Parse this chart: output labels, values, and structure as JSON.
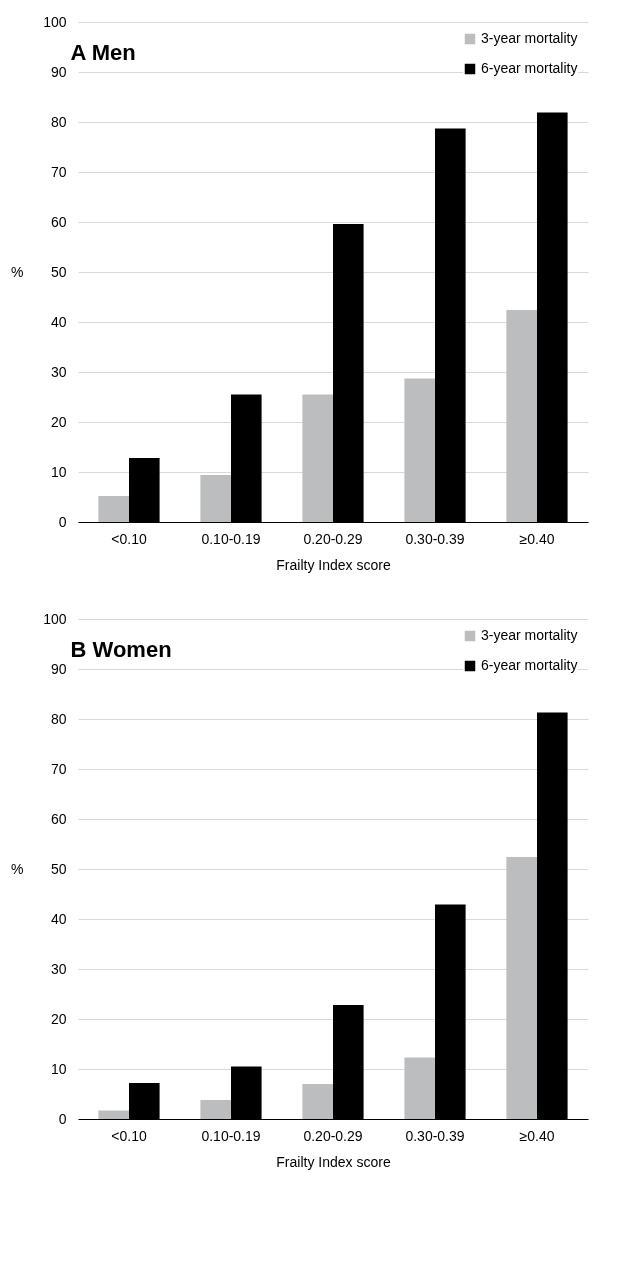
{
  "chart_data": [
    {
      "type": "bar",
      "title": "A Men",
      "xlabel": "Frailty Index score",
      "ylabel": "%",
      "categories": [
        "<0.10",
        "0.10-0.19",
        "0.20-0.29",
        "0.30-0.39",
        "≥0.40"
      ],
      "series": [
        {
          "name": "3-year mortality",
          "color": "#bcbdbf",
          "values": [
            5.2,
            9.4,
            25.5,
            28.7,
            42.4
          ]
        },
        {
          "name": "6-year mortality",
          "color": "#000000",
          "values": [
            12.8,
            25.5,
            59.6,
            78.7,
            81.9
          ]
        }
      ],
      "ylim": [
        0,
        100
      ],
      "yticks": [
        0,
        10,
        20,
        30,
        40,
        50,
        60,
        70,
        80,
        90,
        100
      ],
      "grid": "y",
      "legend": "top right"
    },
    {
      "type": "bar",
      "title": "B Women",
      "xlabel": "Frailty Index score",
      "ylabel": "%",
      "categories": [
        "<0.10",
        "0.10-0.19",
        "0.20-0.29",
        "0.30-0.39",
        "≥0.40"
      ],
      "series": [
        {
          "name": "3-year mortality",
          "color": "#bcbdbf",
          "values": [
            1.7,
            3.8,
            7.0,
            12.3,
            52.4
          ]
        },
        {
          "name": "6-year mortality",
          "color": "#000000",
          "values": [
            7.2,
            10.5,
            22.8,
            42.9,
            81.3
          ]
        }
      ],
      "ylim": [
        0,
        100
      ],
      "yticks": [
        0,
        10,
        20,
        30,
        40,
        50,
        60,
        70,
        80,
        90,
        100
      ],
      "grid": "y",
      "legend": "top right"
    }
  ]
}
